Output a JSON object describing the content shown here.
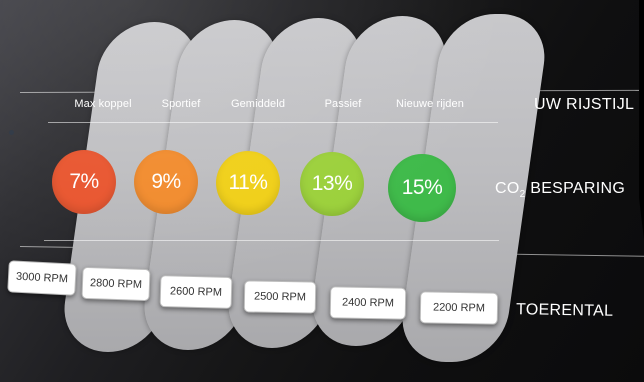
{
  "row_titles": {
    "style": "UW RIJSTIJL",
    "co2_prefix": "CO",
    "co2_sub": "2",
    "co2_suffix": " BESPARING",
    "rpm": "TOERENTAL"
  },
  "columns": [
    {
      "label": "Max koppel",
      "saving": "7%",
      "rpm": "3000 RPM",
      "color": "#e8532c"
    },
    {
      "label": "Sportief",
      "saving": "9%",
      "rpm": "2800 RPM",
      "color": "#f18a2b"
    },
    {
      "label": "Gemiddeld",
      "saving": "11%",
      "rpm": "2600 RPM",
      "color": "#f0cf16"
    },
    {
      "label": "Passief",
      "saving": "13%",
      "rpm": "2500 RPM",
      "color": "#9bd03a"
    },
    {
      "label": "Nieuwe rijden",
      "saving": "15%",
      "rpm": "2400 RPM",
      "color": "#3fba4a"
    }
  ],
  "extra_rpm": "2200 RPM"
}
